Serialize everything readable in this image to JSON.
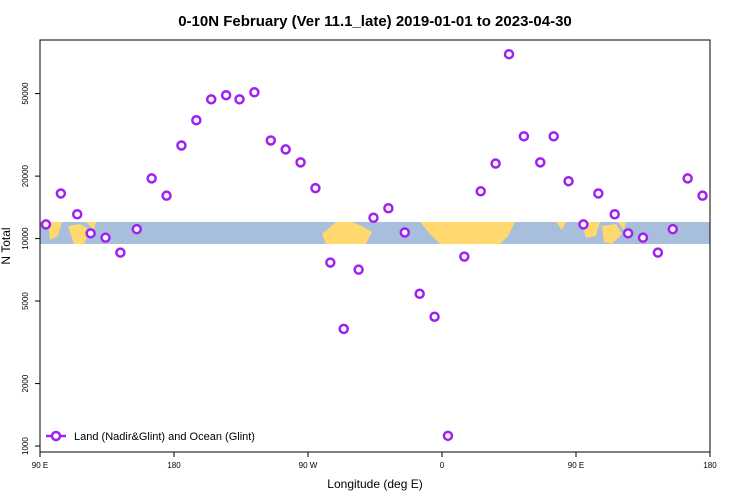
{
  "chart_data": {
    "type": "scatter",
    "title": "0-10N February (Ver 11.1_late)   2019-01-01 to 2023-04-30",
    "x_label": "Longitude (deg E)",
    "y_label": "N Total",
    "log_y": true,
    "legend": "bottom-left",
    "xlim": [
      90,
      540
    ],
    "ylim": [
      936,
      90600
    ],
    "xticks": [
      {
        "value": 90,
        "label": "90 E"
      },
      180,
      {
        "value": 270,
        "label": "90 W"
      },
      {
        "value": 360,
        "label": "0"
      },
      {
        "value": 450,
        "label": "90 E"
      },
      {
        "value": 540,
        "label": "180"
      }
    ],
    "yticks": [
      1000,
      2000,
      5000,
      10000,
      20000,
      50000
    ],
    "x": [
      94,
      104,
      115,
      124,
      134,
      144,
      155,
      165,
      175,
      185,
      195,
      205,
      215,
      224,
      234,
      245,
      255,
      265,
      275,
      285,
      294,
      304,
      314,
      324,
      335,
      345,
      355,
      364,
      375,
      386,
      396,
      405,
      415,
      426,
      435,
      445,
      455,
      465,
      476,
      485,
      495,
      505,
      515,
      525,
      535
    ],
    "series": [
      {
        "name": "Land (Nadir&Glint) and Ocean (Glint)",
        "color": "#a020f0",
        "values": [
          11700,
          16500,
          13100,
          10600,
          10100,
          8560,
          11100,
          19500,
          16100,
          28100,
          37200,
          46900,
          49100,
          46900,
          50700,
          29700,
          26900,
          23300,
          17500,
          7660,
          3670,
          7080,
          12600,
          14000,
          10700,
          5420,
          4200,
          1120,
          8190,
          16900,
          23000,
          77400,
          31100,
          23300,
          31100,
          18900,
          11700,
          16500,
          13100,
          10600,
          10100,
          8560,
          11100,
          19500,
          16100
        ]
      }
    ]
  }
}
